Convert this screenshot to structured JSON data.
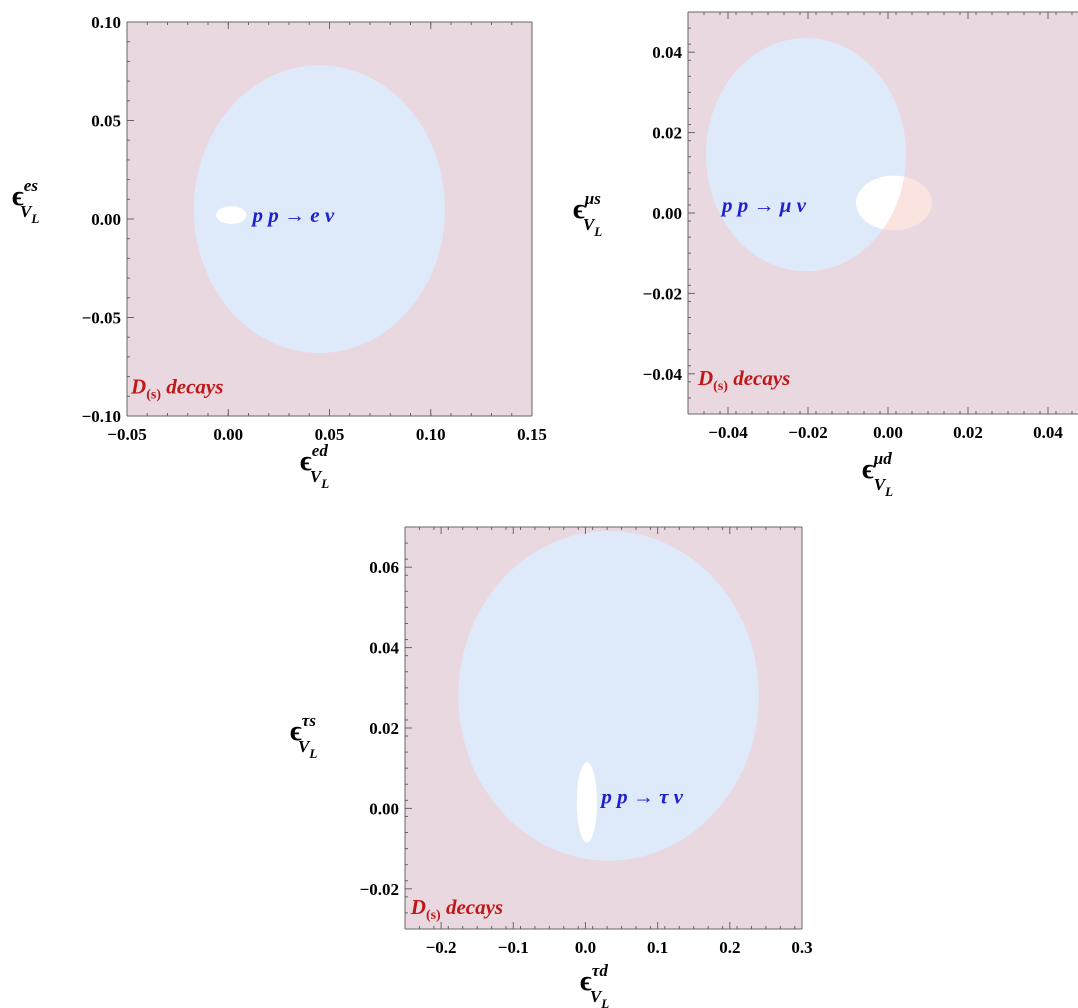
{
  "colors": {
    "region_bg": "#ead8e0",
    "decay_region": "#deeafa",
    "pp_region": "#ffffff",
    "overlap_region": "#fbe3e0",
    "pp_label": "#1f1fcf",
    "decay_label": "#c01818",
    "frame": "#666666"
  },
  "chart_data": [
    {
      "type": "region",
      "xlim": [
        -0.05,
        0.15
      ],
      "ylim": [
        -0.1,
        0.1
      ],
      "x_ticks": [
        -0.05,
        0.0,
        0.05,
        0.1,
        0.15
      ],
      "x_tick_labels": [
        "−0.05",
        "0.00",
        "0.05",
        "0.10",
        "0.15"
      ],
      "y_ticks": [
        -0.1,
        -0.05,
        0.0,
        0.05,
        0.1
      ],
      "y_tick_labels": [
        "−0.10",
        "−0.05",
        "0.00",
        "0.05",
        "0.10"
      ],
      "xlabel": {
        "sym": "ϵ",
        "sub": "V_L",
        "sup": "ed"
      },
      "ylabel": {
        "sym": "ϵ",
        "sub": "V_L",
        "sup": "es"
      },
      "decay_ellipse": {
        "cx": 0.045,
        "cy": 0.005,
        "rx": 0.062,
        "ry": 0.073
      },
      "pp_ellipse": {
        "cx": 0.0015,
        "cy": 0.002,
        "rx": 0.0075,
        "ry": 0.0045
      },
      "pp_label": {
        "text": "p p → e ν",
        "x": 0.012,
        "y": 0.002
      },
      "decay_label": {
        "main": "D",
        "sub": "(s)",
        "rest": " decays",
        "x": -0.048,
        "y": -0.085
      }
    },
    {
      "type": "region",
      "xlim": [
        -0.05,
        0.05
      ],
      "ylim": [
        -0.05,
        0.05
      ],
      "x_ticks": [
        -0.04,
        -0.02,
        0.0,
        0.02,
        0.04
      ],
      "x_tick_labels": [
        "−0.04",
        "−0.02",
        "0.00",
        "0.02",
        "0.04"
      ],
      "y_ticks": [
        -0.04,
        -0.02,
        0.0,
        0.02,
        0.04
      ],
      "y_tick_labels": [
        "−0.04",
        "−0.02",
        "0.00",
        "0.02",
        "0.04"
      ],
      "xlabel": {
        "sym": "ϵ",
        "sub": "V_L",
        "sup": "μd"
      },
      "ylabel": {
        "sym": "ϵ",
        "sub": "V_L",
        "sup": "μs"
      },
      "decay_ellipse": {
        "cx": -0.0205,
        "cy": 0.0145,
        "rx": 0.025,
        "ry": 0.029
      },
      "pp_ellipse": {
        "cx": 0.0015,
        "cy": 0.0025,
        "rx": 0.0095,
        "ry": 0.0068
      },
      "pp_label": {
        "text": "p p → μ ν",
        "x": -0.0415,
        "y": 0.002
      },
      "decay_label": {
        "main": "D",
        "sub": "(s)",
        "rest": " decays",
        "x": -0.0475,
        "y": -0.041
      }
    },
    {
      "type": "region",
      "xlim": [
        -0.25,
        0.3
      ],
      "ylim": [
        -0.03,
        0.07
      ],
      "x_ticks": [
        -0.2,
        -0.1,
        0.0,
        0.1,
        0.2,
        0.3
      ],
      "x_tick_labels": [
        "−0.2",
        "−0.1",
        "0.0",
        "0.1",
        "0.2",
        "0.3"
      ],
      "y_ticks": [
        -0.02,
        0.0,
        0.02,
        0.04,
        0.06
      ],
      "y_tick_labels": [
        "−0.02",
        "0.00",
        "0.02",
        "0.04",
        "0.06"
      ],
      "xlabel": {
        "sym": "ϵ",
        "sub": "V_L",
        "sup": "τd"
      },
      "ylabel": {
        "sym": "ϵ",
        "sub": "V_L",
        "sup": "τs"
      },
      "decay_ellipse": {
        "cx": 0.032,
        "cy": 0.028,
        "rx": 0.208,
        "ry": 0.041
      },
      "pp_ellipse": {
        "cx": 0.002,
        "cy": 0.0015,
        "rx": 0.014,
        "ry": 0.01
      },
      "pp_label": {
        "text": "p p → τ ν",
        "x": 0.022,
        "y": 0.003
      },
      "decay_label": {
        "main": "D",
        "sub": "(s)",
        "rest": " decays",
        "x": -0.242,
        "y": -0.0245
      }
    }
  ]
}
